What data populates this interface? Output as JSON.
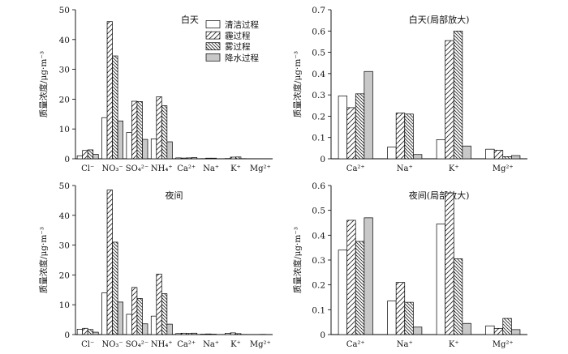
{
  "figure": {
    "ylabel": "质量浓度/μg·m⁻³"
  },
  "legend": [
    "清洁过程",
    "霾过程",
    "雾过程",
    "降水过程"
  ],
  "chart_data": [
    {
      "type": "bar",
      "title": "白天",
      "categories": [
        "Cl⁻",
        "NO₃⁻",
        "SO₄²⁻",
        "NH₄⁺",
        "Ca²⁺",
        "Na⁺",
        "K⁺",
        "Mg²⁺"
      ],
      "ylim": [
        0,
        50
      ],
      "yticks": [
        0,
        10,
        20,
        30,
        40,
        50
      ],
      "ytick_labels": [
        "0",
        "10",
        "20",
        "30",
        "40",
        "50"
      ],
      "series": [
        {
          "name": "清洁过程",
          "values": [
            1.0,
            13.8,
            8.8,
            6.7,
            0.3,
            0.06,
            0.09,
            0.04
          ]
        },
        {
          "name": "霾过程",
          "values": [
            2.8,
            46.0,
            19.3,
            20.8,
            0.24,
            0.21,
            0.55,
            0.04
          ]
        },
        {
          "name": "雾过程",
          "values": [
            3.0,
            34.5,
            19.2,
            17.8,
            0.3,
            0.21,
            0.6,
            0.01
          ]
        },
        {
          "name": "降水过程",
          "values": [
            1.5,
            12.7,
            6.5,
            5.7,
            0.41,
            0.02,
            0.06,
            0.01
          ]
        }
      ]
    },
    {
      "type": "bar",
      "title": "白天(局部放大)",
      "categories": [
        "Ca²⁺",
        "Na⁺",
        "K⁺",
        "Mg²⁺"
      ],
      "ylim": [
        0,
        0.7
      ],
      "yticks": [
        0,
        0.1,
        0.2,
        0.3,
        0.4,
        0.5,
        0.6,
        0.7
      ],
      "ytick_labels": [
        "0",
        "0.1",
        "0.2",
        "0.3",
        "0.4",
        "0.5",
        "0.6",
        "0.7"
      ],
      "series": [
        {
          "name": "清洁过程",
          "values": [
            0.295,
            0.055,
            0.09,
            0.045
          ]
        },
        {
          "name": "霾过程",
          "values": [
            0.24,
            0.215,
            0.555,
            0.04
          ]
        },
        {
          "name": "雾过程",
          "values": [
            0.305,
            0.21,
            0.6,
            0.01
          ]
        },
        {
          "name": "降水过程",
          "values": [
            0.41,
            0.02,
            0.06,
            0.015
          ]
        }
      ]
    },
    {
      "type": "bar",
      "title": "夜间",
      "categories": [
        "Cl⁻",
        "NO₃⁻",
        "SO₄²⁻",
        "NH₄⁺",
        "Ca²⁺",
        "Na⁺",
        "K⁺",
        "Mg²⁺"
      ],
      "ylim": [
        0,
        50
      ],
      "yticks": [
        0,
        10,
        20,
        30,
        40,
        50
      ],
      "ytick_labels": [
        "0",
        "10",
        "20",
        "30",
        "40",
        "50"
      ],
      "series": [
        {
          "name": "清洁过程",
          "values": [
            1.8,
            14.0,
            6.8,
            6.2,
            0.34,
            0.13,
            0.44,
            0.04
          ]
        },
        {
          "name": "霾过程",
          "values": [
            2.1,
            48.5,
            15.8,
            20.3,
            0.46,
            0.21,
            0.57,
            0.03
          ]
        },
        {
          "name": "雾过程",
          "values": [
            1.7,
            31.0,
            12.1,
            13.7,
            0.38,
            0.13,
            0.31,
            0.07
          ]
        },
        {
          "name": "降水过程",
          "values": [
            0.8,
            10.9,
            3.6,
            3.5,
            0.47,
            0.03,
            0.05,
            0.02
          ]
        }
      ]
    },
    {
      "type": "bar",
      "title": "夜间(局部放大)",
      "categories": [
        "Ca²⁺",
        "Na⁺",
        "K⁺",
        "Mg²⁺"
      ],
      "ylim": [
        0,
        0.6
      ],
      "yticks": [
        0,
        0.1,
        0.2,
        0.3,
        0.4,
        0.5,
        0.6
      ],
      "ytick_labels": [
        "0",
        "0.1",
        "0.2",
        "0.3",
        "0.4",
        "0.5",
        "0.6"
      ],
      "series": [
        {
          "name": "清洁过程",
          "values": [
            0.34,
            0.135,
            0.445,
            0.035
          ]
        },
        {
          "name": "霾过程",
          "values": [
            0.46,
            0.21,
            0.57,
            0.025
          ]
        },
        {
          "name": "雾过程",
          "values": [
            0.375,
            0.13,
            0.305,
            0.065
          ]
        },
        {
          "name": "降水过程",
          "values": [
            0.47,
            0.03,
            0.045,
            0.02
          ]
        }
      ]
    }
  ]
}
